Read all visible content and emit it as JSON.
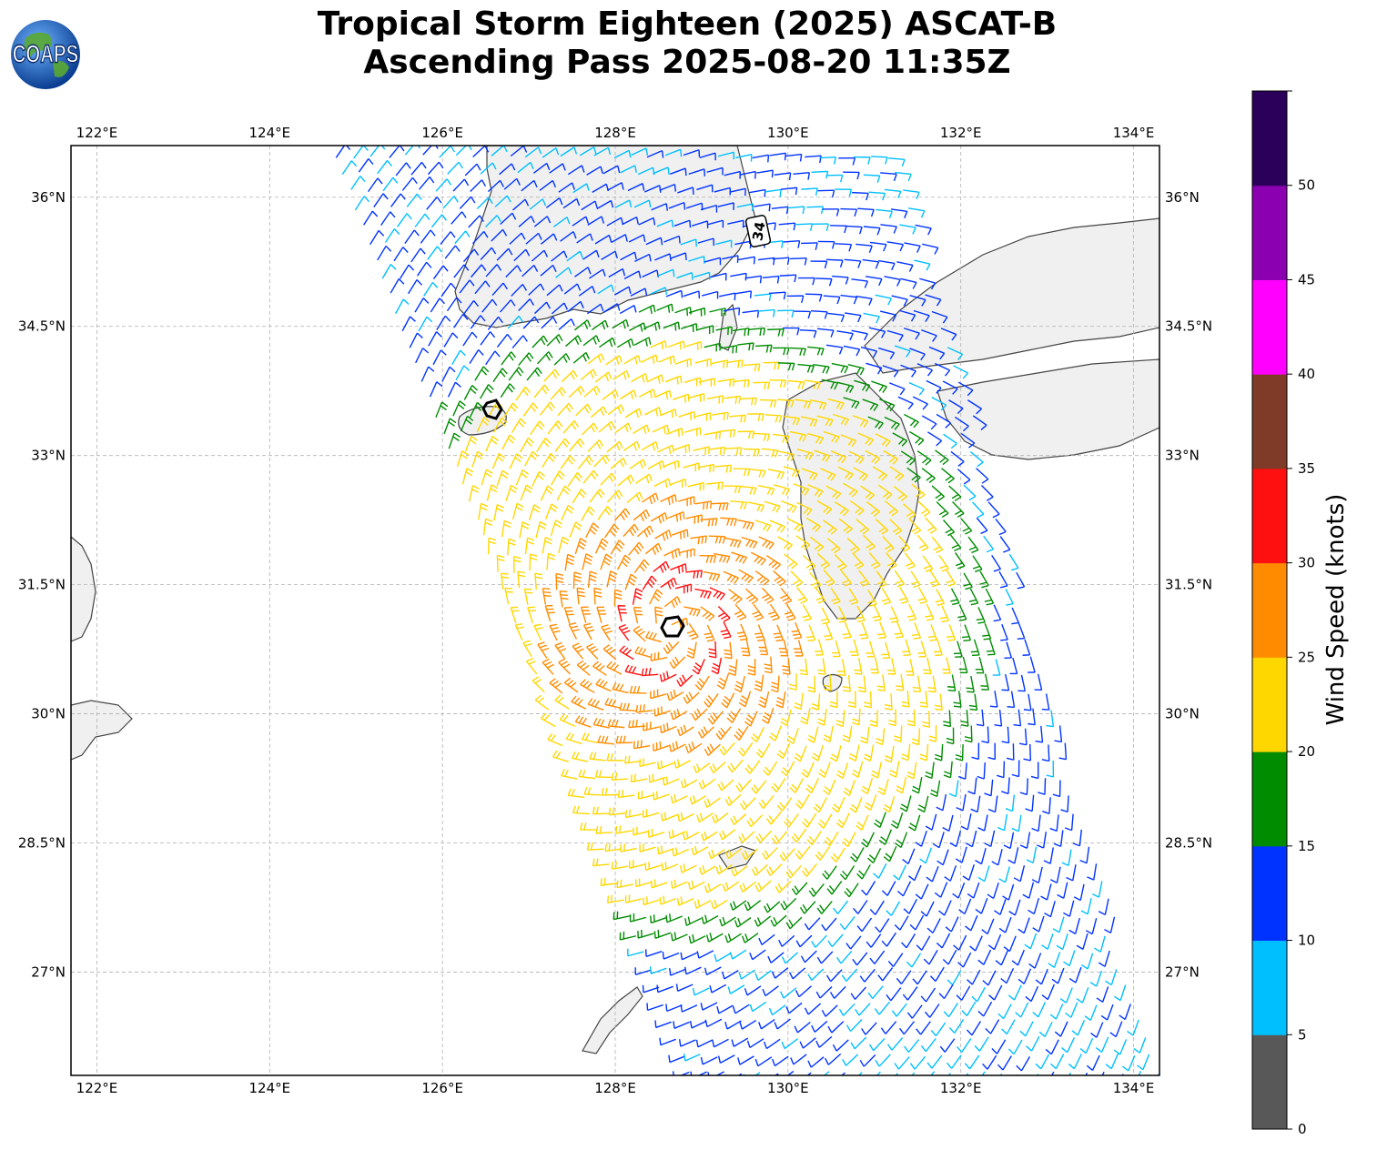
{
  "title": {
    "line1": "Tropical Storm Eighteen (2025) ASCAT-B",
    "line2": "Ascending Pass 2025-08-20 11:35Z"
  },
  "logo": {
    "text": "COAPS",
    "icon": "globe-icon"
  },
  "map": {
    "lon_labels": [
      "122°E",
      "124°E",
      "126°E",
      "128°E",
      "130°E",
      "132°E",
      "134°E"
    ],
    "lon_values": [
      122,
      124,
      126,
      128,
      130,
      132,
      134
    ],
    "lat_labels": [
      "27°N",
      "28.5°N",
      "30°N",
      "31.5°N",
      "33°N",
      "34.5°N",
      "36°N"
    ],
    "lat_values": [
      27,
      28.5,
      30,
      31.5,
      33,
      34.5,
      36
    ],
    "lon_range": [
      121.7,
      134.3
    ],
    "lat_range": [
      25.8,
      36.6
    ],
    "grid": true,
    "land_color": "#f2f2f2",
    "coast_color": "#444444",
    "storm_center": {
      "lon": 128.65,
      "lat": 31.0
    },
    "marker_label": "34"
  },
  "colorbar": {
    "title": "Wind Speed (knots)",
    "tick_labels": [
      "0",
      "5",
      "10",
      "15",
      "20",
      "25",
      "30",
      "35",
      "40",
      "45",
      "50"
    ],
    "bins": [
      {
        "min": 0,
        "max": 5,
        "color": "#585858"
      },
      {
        "min": 5,
        "max": 10,
        "color": "#00bfff"
      },
      {
        "min": 10,
        "max": 15,
        "color": "#0033ff"
      },
      {
        "min": 15,
        "max": 20,
        "color": "#008c00"
      },
      {
        "min": 20,
        "max": 25,
        "color": "#ffd700"
      },
      {
        "min": 25,
        "max": 30,
        "color": "#ff8c00"
      },
      {
        "min": 30,
        "max": 35,
        "color": "#ff1010"
      },
      {
        "min": 35,
        "max": 40,
        "color": "#7f3a28"
      },
      {
        "min": 40,
        "max": 45,
        "color": "#ff00ff"
      },
      {
        "min": 45,
        "max": 50,
        "color": "#8b00b0"
      },
      {
        "min": 50,
        "max": 55,
        "color": "#2a005a"
      }
    ]
  }
}
